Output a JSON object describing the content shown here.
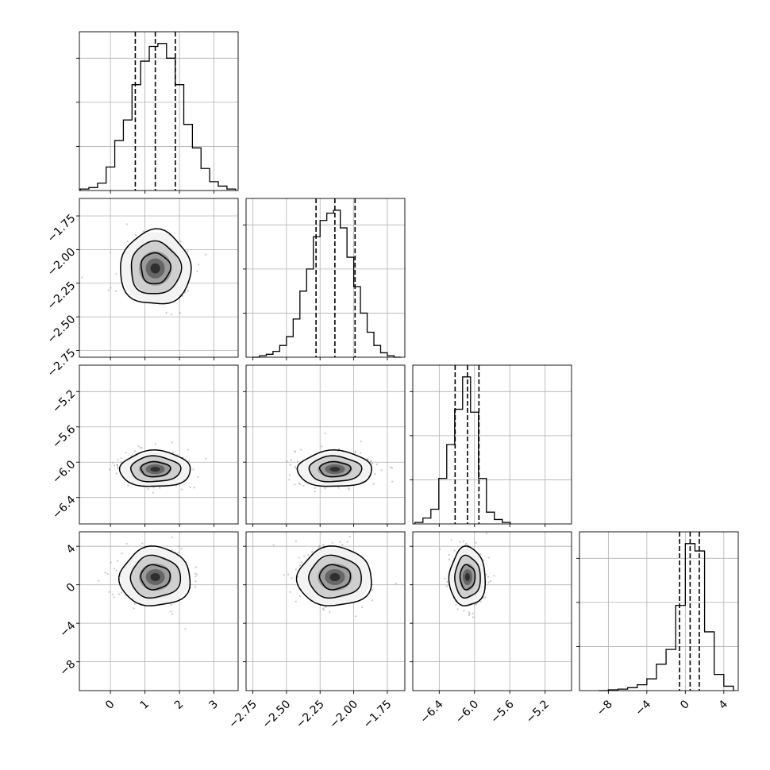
{
  "chart_data": {
    "type": "corner",
    "title": "",
    "params": [
      {
        "range": [
          -0.9,
          3.7
        ],
        "ticks": [
          0,
          1,
          2,
          3
        ],
        "tick_labels": [
          "0",
          "1",
          "2",
          "3"
        ],
        "center": 1.3,
        "sd": 0.5,
        "quantiles": [
          0.72,
          1.3,
          1.88
        ],
        "hist_x": [
          -0.75,
          -0.5,
          -0.25,
          0.0,
          0.25,
          0.5,
          0.75,
          1.0,
          1.25,
          1.5,
          1.75,
          2.0,
          2.25,
          2.5,
          2.75,
          3.0,
          3.25,
          3.5
        ],
        "hist_y": [
          0.01,
          0.02,
          0.05,
          0.16,
          0.34,
          0.48,
          0.72,
          0.88,
          0.98,
          1.0,
          0.9,
          0.72,
          0.45,
          0.29,
          0.15,
          0.06,
          0.03,
          0.01
        ]
      },
      {
        "range": [
          -2.8,
          -1.62
        ],
        "ticks": [
          -2.75,
          -2.5,
          -2.25,
          -2.0,
          -1.75
        ],
        "tick_labels": [
          "−2.75",
          "−2.50",
          "−2.25",
          "−2.00",
          "−1.75"
        ],
        "center": -2.14,
        "sd": 0.135,
        "quantiles": [
          -2.28,
          -2.14,
          -1.99
        ],
        "hist_x": [
          -2.725,
          -2.675,
          -2.625,
          -2.575,
          -2.525,
          -2.475,
          -2.425,
          -2.375,
          -2.325,
          -2.275,
          -2.225,
          -2.175,
          -2.125,
          -2.075,
          -2.025,
          -1.975,
          -1.925,
          -1.875,
          -1.825,
          -1.775,
          -1.725,
          -1.675
        ],
        "hist_y": [
          0.0,
          0.01,
          0.02,
          0.04,
          0.08,
          0.14,
          0.26,
          0.45,
          0.6,
          0.82,
          0.93,
          0.98,
          1.0,
          0.88,
          0.68,
          0.48,
          0.3,
          0.17,
          0.08,
          0.03,
          0.01,
          0.0
        ]
      },
      {
        "range": [
          -6.7,
          -4.9
        ],
        "ticks": [
          -6.4,
          -6.0,
          -5.6,
          -5.2
        ],
        "tick_labels": [
          "−6.4",
          "−6.0",
          "−5.6",
          "−5.2"
        ],
        "center": -6.08,
        "sd": 0.1,
        "quantiles": [
          -6.22,
          -6.08,
          -5.95
        ],
        "hist_x": [
          -6.63,
          -6.54,
          -6.45,
          -6.36,
          -6.27,
          -6.18,
          -6.09,
          -6.0,
          -5.91,
          -5.82,
          -5.73,
          -5.64
        ],
        "hist_y": [
          0.01,
          0.04,
          0.1,
          0.31,
          0.54,
          0.78,
          1.0,
          0.76,
          0.31,
          0.08,
          0.03,
          0.01
        ]
      },
      {
        "range": [
          -11.0,
          5.5
        ],
        "ticks": [
          -8,
          -4,
          0,
          4
        ],
        "tick_labels": [
          "−8",
          "−4",
          "0",
          "4"
        ],
        "center": 0.8,
        "sd": 1.5,
        "quantiles": [
          -0.6,
          0.5,
          1.45
        ],
        "hist_x": [
          -8.5,
          -7.5,
          -6.5,
          -5.5,
          -4.5,
          -3.5,
          -2.5,
          -1.5,
          -0.5,
          0.5,
          1.5,
          2.5,
          3.5,
          4.5
        ],
        "hist_y": [
          0.0,
          0.005,
          0.01,
          0.02,
          0.04,
          0.08,
          0.18,
          0.28,
          0.58,
          1.0,
          0.95,
          0.4,
          0.11,
          0.03
        ]
      }
    ],
    "grid": true,
    "contour_levels": [
      "inner",
      "middle",
      "outer"
    ]
  }
}
